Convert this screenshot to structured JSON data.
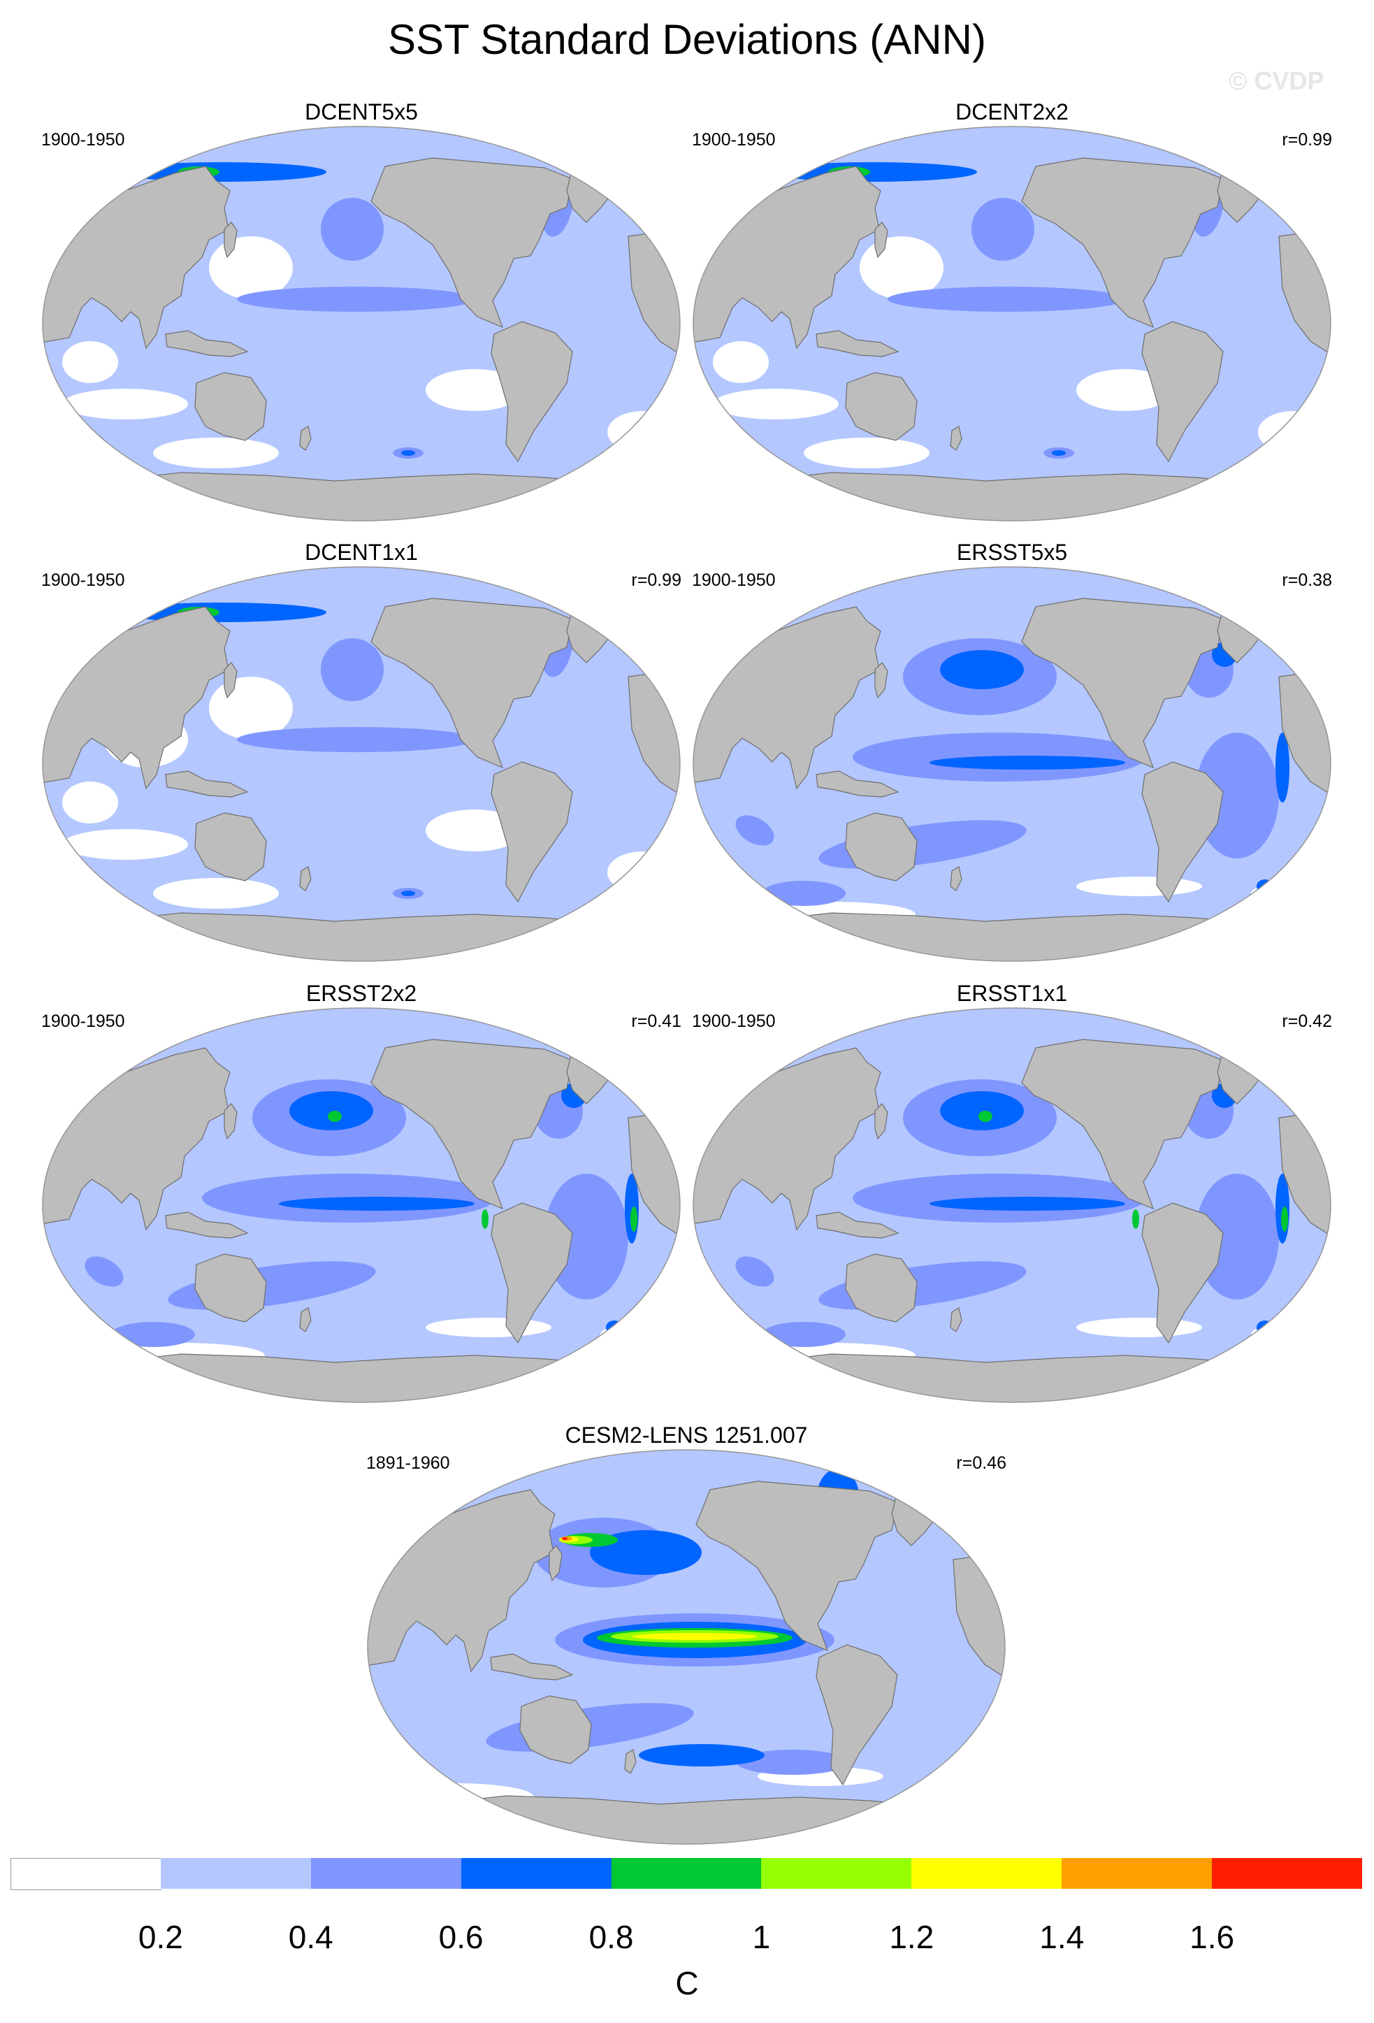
{
  "title": "SST Standard Deviations (ANN)",
  "watermark": "© CVDP",
  "panels": [
    {
      "name": "DCENT5x5",
      "period": "1900-1950",
      "corr": ""
    },
    {
      "name": "DCENT2x2",
      "period": "1900-1950",
      "corr": "r=0.99"
    },
    {
      "name": "DCENT1x1",
      "period": "1900-1950",
      "corr": "r=0.99"
    },
    {
      "name": "ERSST5x5",
      "period": "1900-1950",
      "corr": "r=0.38"
    },
    {
      "name": "ERSST2x2",
      "period": "1900-1950",
      "corr": "r=0.41"
    },
    {
      "name": "ERSST1x1",
      "period": "1900-1950",
      "corr": "r=0.42"
    },
    {
      "name": "CESM2-LENS 1251.007",
      "period": "1891-1960",
      "corr": "r=0.46"
    }
  ],
  "colorbar": {
    "colors": [
      "#ffffff",
      "#b4c7ff",
      "#8096ff",
      "#0064ff",
      "#00c832",
      "#96ff00",
      "#ffff00",
      "#ffa000",
      "#ff1e00"
    ],
    "labels": [
      "0.2",
      "0.4",
      "0.6",
      "0.8",
      "1",
      "1.2",
      "1.4",
      "1.6"
    ],
    "unit": "C"
  },
  "map_colors": {
    "land": "#bdbdbd",
    "coast": "#6e6e6e",
    "frame": "#969696",
    "base_ocean": "#b4c7ff"
  }
}
